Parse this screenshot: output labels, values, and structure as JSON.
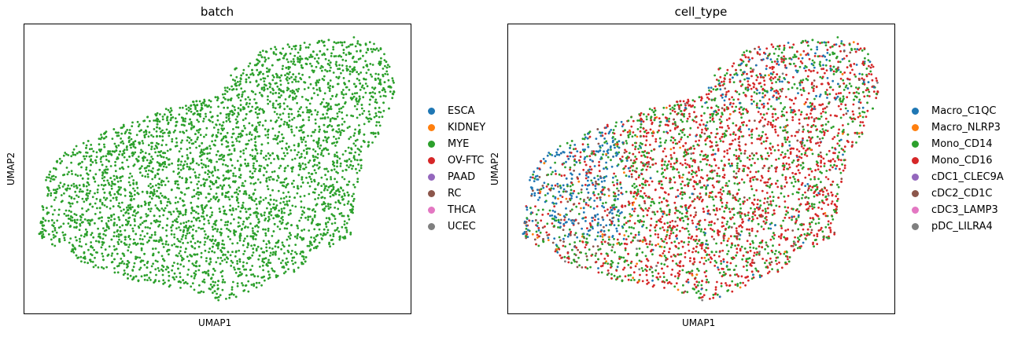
{
  "chart_data": [
    {
      "type": "scatter",
      "title": "batch",
      "xlabel": "UMAP1",
      "ylabel": "UMAP2",
      "grid": false,
      "legend_position": "right",
      "categories": [
        "ESCA",
        "KIDNEY",
        "MYE",
        "OV-FTC",
        "PAAD",
        "RC",
        "THCA",
        "UCEC"
      ],
      "colors": [
        "#1f77b4",
        "#ff7f0e",
        "#2ca02c",
        "#d62728",
        "#9467bd",
        "#8c564b",
        "#e377c2",
        "#7f7f7f"
      ],
      "point_mix": {
        "MYE": 1.0
      }
    },
    {
      "type": "scatter",
      "title": "cell_type",
      "xlabel": "UMAP1",
      "ylabel": "UMAP2",
      "grid": false,
      "legend_position": "right",
      "categories": [
        "Macro_C1QC",
        "Macro_NLRP3",
        "Mono_CD14",
        "Mono_CD16",
        "cDC1_CLEC9A",
        "cDC2_CD1C",
        "cDC3_LAMP3",
        "pDC_LILRA4"
      ],
      "colors": [
        "#1f77b4",
        "#ff7f0e",
        "#2ca02c",
        "#d62728",
        "#9467bd",
        "#8c564b",
        "#e377c2",
        "#7f7f7f"
      ],
      "point_mix": {
        "Macro_C1QC": 0.14,
        "Macro_NLRP3": 0.02,
        "Mono_CD14": 0.36,
        "Mono_CD16": 0.42,
        "cDC2_CD1C": 0.05,
        "pDC_LILRA4": 0.01
      }
    }
  ]
}
